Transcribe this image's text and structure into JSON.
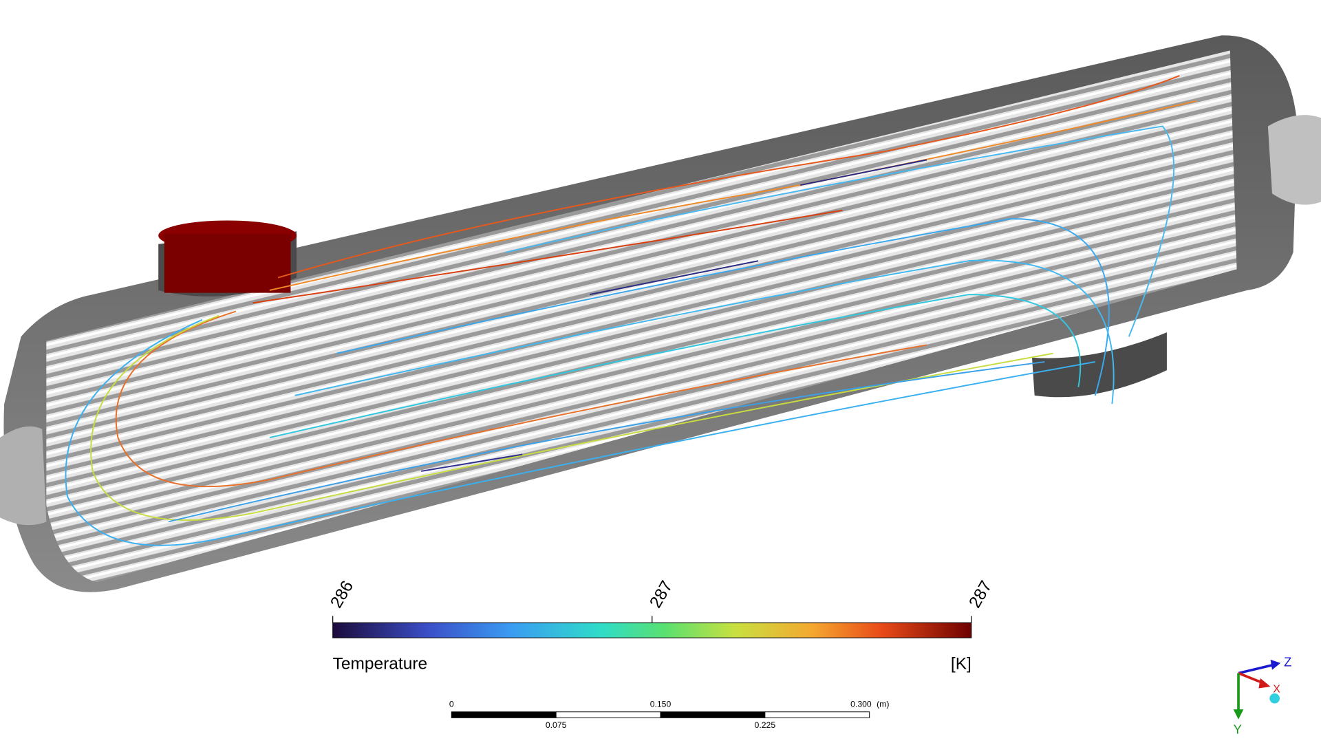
{
  "legend": {
    "title": "Temperature",
    "unit": "[K]",
    "tick_labels": [
      "286",
      "287",
      "287"
    ]
  },
  "scale_bar": {
    "top_labels": [
      "0",
      "0.150",
      "0.300"
    ],
    "unit": "(m)",
    "bottom_labels": [
      "0.075",
      "0.225"
    ]
  },
  "axes": {
    "z": "Z",
    "x": "X",
    "y": "Y"
  }
}
